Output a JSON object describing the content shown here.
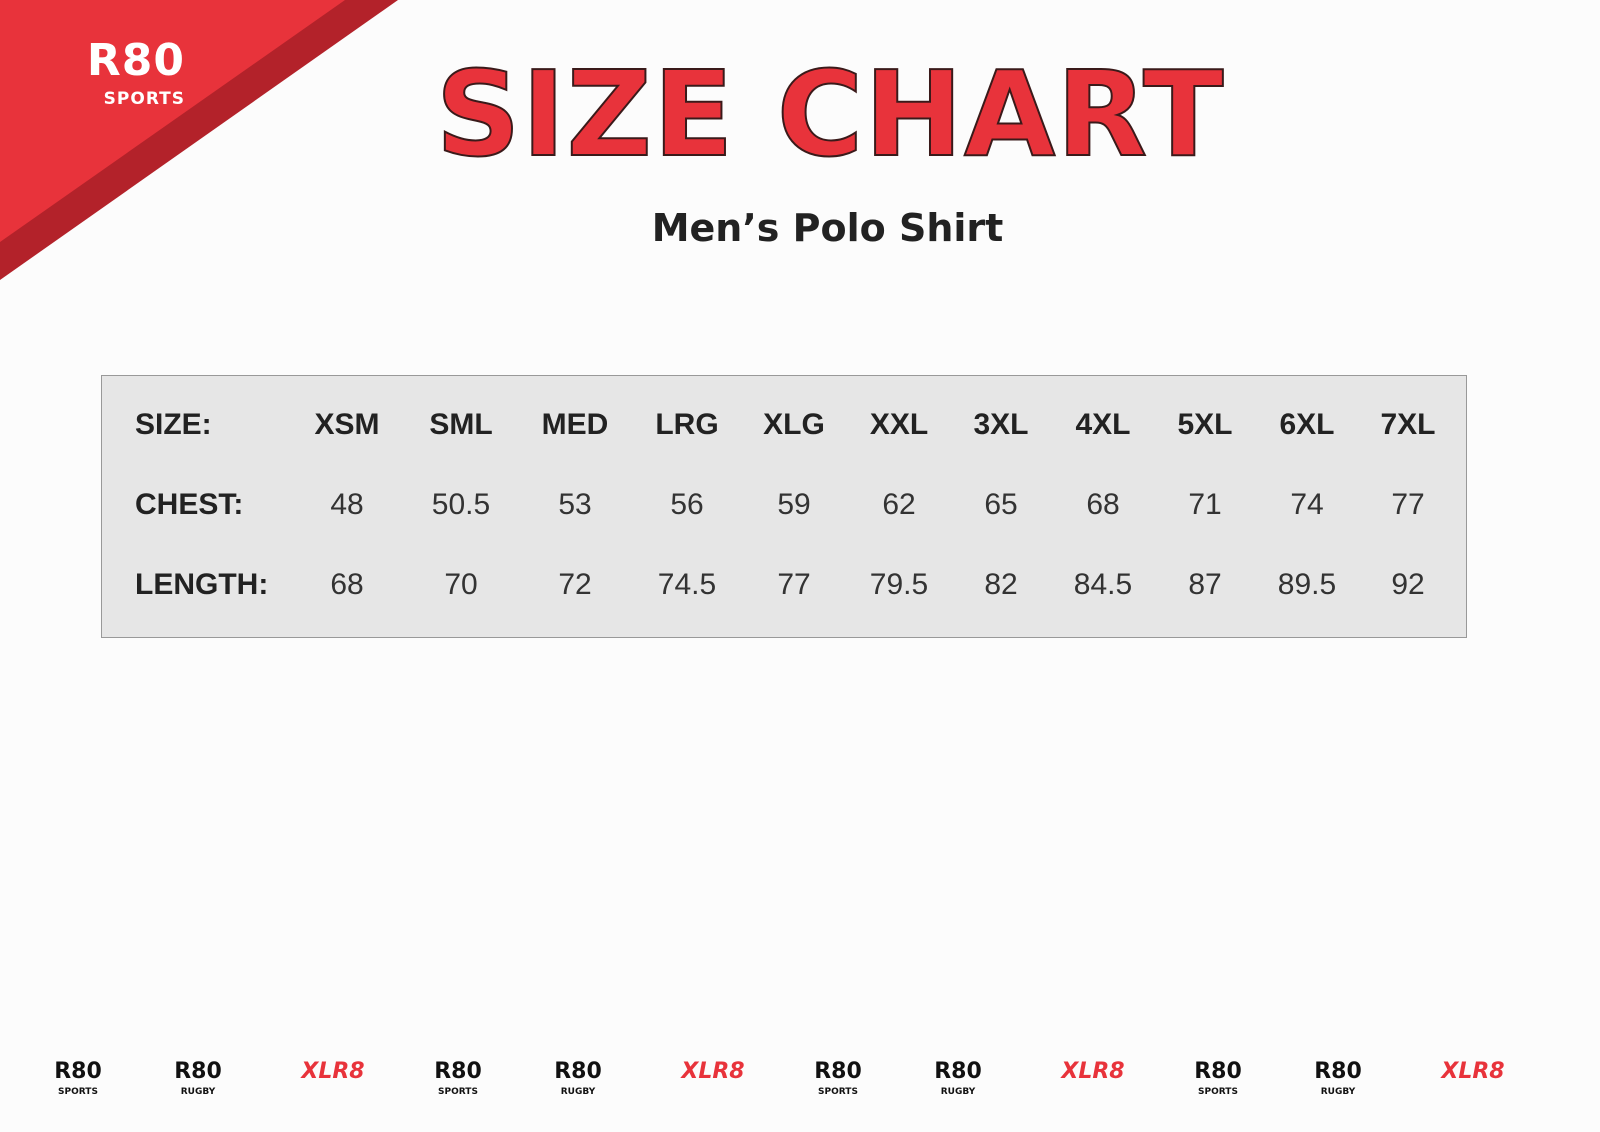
{
  "brand": {
    "logo_main": "R80",
    "logo_sub": "SPORTS",
    "red": "#e8333b",
    "dark_red": "#b3222a"
  },
  "title": "SIZE CHART",
  "subtitle": "Men’s Polo Shirt",
  "table": {
    "rows": [
      {
        "label": "SIZE:",
        "values": [
          "XSM",
          "SML",
          "MED",
          "LRG",
          "XLG",
          "XXL",
          "3XL",
          "4XL",
          "5XL",
          "6XL",
          "7XL"
        ]
      },
      {
        "label": "CHEST:",
        "values": [
          "48",
          "50.5",
          "53",
          "56",
          "59",
          "62",
          "65",
          "68",
          "71",
          "74",
          "77"
        ]
      },
      {
        "label": "LENGTH:",
        "values": [
          "68",
          "70",
          "72",
          "74.5",
          "77",
          "79.5",
          "82",
          "84.5",
          "87",
          "89.5",
          "92"
        ]
      }
    ]
  },
  "footer_logos": [
    {
      "main": "R80",
      "sub": "SPORTS"
    },
    {
      "main": "R80",
      "sub": "RUGBY"
    },
    {
      "main": "XLR8",
      "sub": ""
    },
    {
      "main": "R80",
      "sub": "SPORTS"
    },
    {
      "main": "R80",
      "sub": "RUGBY"
    },
    {
      "main": "XLR8",
      "sub": ""
    },
    {
      "main": "R80",
      "sub": "SPORTS"
    },
    {
      "main": "R80",
      "sub": "RUGBY"
    },
    {
      "main": "XLR8",
      "sub": ""
    },
    {
      "main": "R80",
      "sub": "SPORTS"
    },
    {
      "main": "R80",
      "sub": "RUGBY"
    },
    {
      "main": "XLR8",
      "sub": ""
    }
  ]
}
